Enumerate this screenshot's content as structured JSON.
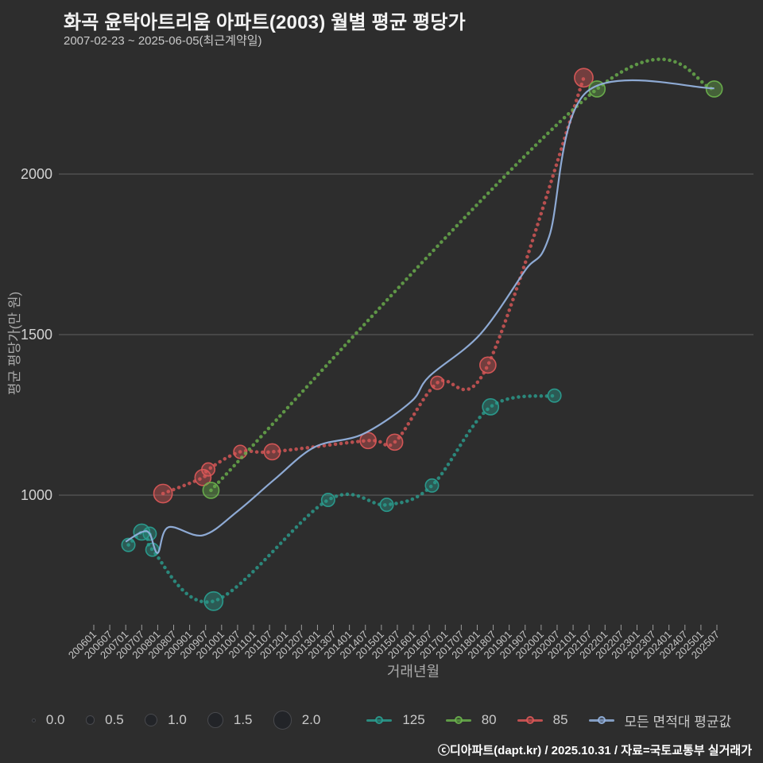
{
  "chart_data": {
    "type": "scatter",
    "subtype": "bubble-line",
    "title": "화곡 윤탁아트리움 아파트(2003) 월별 평균 평당가",
    "subtitle": "2007-02-23 ~ 2025-06-05(최근계약일)",
    "xlabel": "거래년월",
    "ylabel": "평균 평당가(만 원)",
    "footer": "ⓒ디아파트(dapt.kr) / 2025.10.31 / 자료=국토교통부 실거래가",
    "grid": "horizontal",
    "legend_position": "bottom",
    "ylim": [
      600,
      2350
    ],
    "xlim": [
      "200601",
      "202507"
    ],
    "y_ticks": [
      1000,
      1500,
      2000
    ],
    "x_ticks": [
      "200601",
      "200607",
      "200701",
      "200707",
      "200801",
      "200807",
      "200901",
      "200907",
      "201001",
      "201007",
      "201101",
      "201107",
      "201201",
      "201207",
      "201301",
      "201307",
      "201401",
      "201407",
      "201501",
      "201507",
      "201601",
      "201607",
      "201701",
      "201707",
      "201801",
      "201807",
      "201901",
      "201907",
      "202001",
      "202007",
      "202101",
      "202107",
      "202201",
      "202207",
      "202301",
      "202307",
      "202401",
      "202407",
      "202501",
      "202507"
    ],
    "size_legend": {
      "values": [
        0.0,
        0.5,
        1.0,
        1.5,
        2.0
      ],
      "labels": [
        "0.0",
        "0.5",
        "1.0",
        "1.5",
        "2.0"
      ]
    },
    "series": [
      {
        "name": "125",
        "color": "#2a9d8f",
        "line": "dotted",
        "markers": true,
        "points": [
          [
            "200702",
            845,
            1.0
          ],
          [
            "200707",
            885,
            1.5
          ],
          [
            "200710",
            880,
            1.0
          ],
          [
            "200711",
            830,
            1.0
          ],
          [
            "200910",
            670,
            2.0
          ],
          [
            "201305",
            985,
            1.0
          ],
          [
            "201503",
            970,
            1.0
          ],
          [
            "201608",
            1030,
            1.0
          ],
          [
            "201806",
            1275,
            1.5
          ],
          [
            "202006",
            1310,
            1.0
          ]
        ]
      },
      {
        "name": "80",
        "color": "#6ab04c",
        "line": "dotted",
        "markers": true,
        "points": [
          [
            "200909",
            1015,
            1.5
          ],
          [
            "202110",
            2265,
            1.5
          ],
          [
            "202506",
            2265,
            1.5
          ]
        ]
      },
      {
        "name": "85",
        "color": "#d95757",
        "line": "dotted",
        "markers": true,
        "points": [
          [
            "200803",
            1005,
            2.0
          ],
          [
            "200906",
            1055,
            1.5
          ],
          [
            "200908",
            1080,
            1.0
          ],
          [
            "201008",
            1135,
            1.0
          ],
          [
            "201108",
            1135,
            1.5
          ],
          [
            "201408",
            1170,
            1.5
          ],
          [
            "201506",
            1165,
            1.5
          ],
          [
            "201610",
            1350,
            1.0
          ],
          [
            "201805",
            1405,
            1.5
          ],
          [
            "202105",
            2300,
            2.0
          ]
        ]
      },
      {
        "name": "모든 면적대 평균값",
        "color": "#93b1dd",
        "line": "solid",
        "markers": false,
        "points": [
          [
            "200701",
            855
          ],
          [
            "200707",
            885
          ],
          [
            "200710",
            880
          ],
          [
            "200801",
            820
          ],
          [
            "200805",
            900
          ],
          [
            "200906",
            875
          ],
          [
            "201007",
            950
          ],
          [
            "201109",
            1050
          ],
          [
            "201212",
            1150
          ],
          [
            "201406",
            1190
          ],
          [
            "201512",
            1290
          ],
          [
            "201607",
            1370
          ],
          [
            "201802",
            1500
          ],
          [
            "201907",
            1700
          ],
          [
            "202004",
            1805
          ],
          [
            "202106",
            2255
          ],
          [
            "202506",
            2267
          ]
        ]
      }
    ]
  }
}
